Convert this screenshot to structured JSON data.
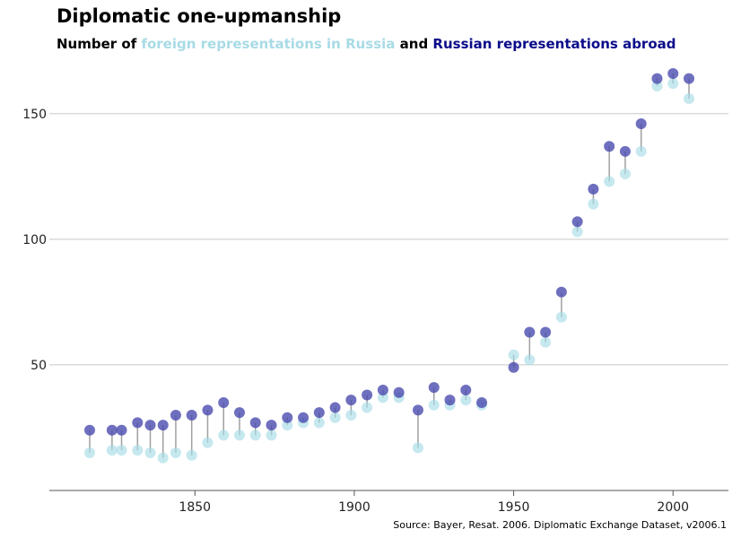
{
  "header": {
    "title": "Diplomatic one-upmanship",
    "subtitle_prefix": "Number of ",
    "subtitle_foreign": "foreign representations in Russia",
    "subtitle_mid": " and ",
    "subtitle_russian": "Russian representations abroad"
  },
  "footer": {
    "source": "Source: Bayer, Resat. 2006. Diplomatic Exchange Dataset, v2006.1"
  },
  "colors": {
    "foreign": "#a8dbe6",
    "russian": "#4b4baf",
    "connector": "#a0a0a0",
    "grid": "#c8c8c8",
    "axis": "#555555"
  },
  "chart_data": {
    "type": "scatter",
    "title": "Diplomatic one-upmanship",
    "subtitle": "Number of foreign representations in Russia and Russian representations abroad",
    "xlim": [
      1805,
      2017
    ],
    "ylim": [
      0,
      170
    ],
    "xticks": [
      1850,
      1900,
      1950,
      2000
    ],
    "yticks": [
      50,
      100,
      150
    ],
    "grid": "horizontal",
    "x": [
      1817,
      1824,
      1827,
      1832,
      1836,
      1840,
      1844,
      1849,
      1854,
      1859,
      1864,
      1869,
      1874,
      1879,
      1884,
      1889,
      1894,
      1899,
      1904,
      1909,
      1914,
      1920,
      1925,
      1930,
      1935,
      1940,
      1950,
      1955,
      1960,
      1965,
      1970,
      1975,
      1980,
      1985,
      1990,
      1995,
      2000,
      2005
    ],
    "series": [
      {
        "name": "foreign representations in Russia",
        "values": [
          15,
          16,
          16,
          16,
          15,
          13,
          15,
          14,
          19,
          22,
          22,
          22,
          22,
          26,
          27,
          27,
          29,
          30,
          33,
          37,
          37,
          17,
          34,
          34,
          36,
          34,
          54,
          52,
          59,
          69,
          103,
          114,
          123,
          126,
          135,
          161,
          162,
          156
        ]
      },
      {
        "name": "Russian representations abroad",
        "values": [
          24,
          24,
          24,
          27,
          26,
          26,
          30,
          30,
          32,
          35,
          31,
          27,
          26,
          29,
          29,
          31,
          33,
          36,
          38,
          40,
          39,
          32,
          41,
          36,
          40,
          35,
          49,
          63,
          63,
          79,
          107,
          120,
          137,
          135,
          146,
          164,
          166,
          164
        ]
      }
    ]
  }
}
